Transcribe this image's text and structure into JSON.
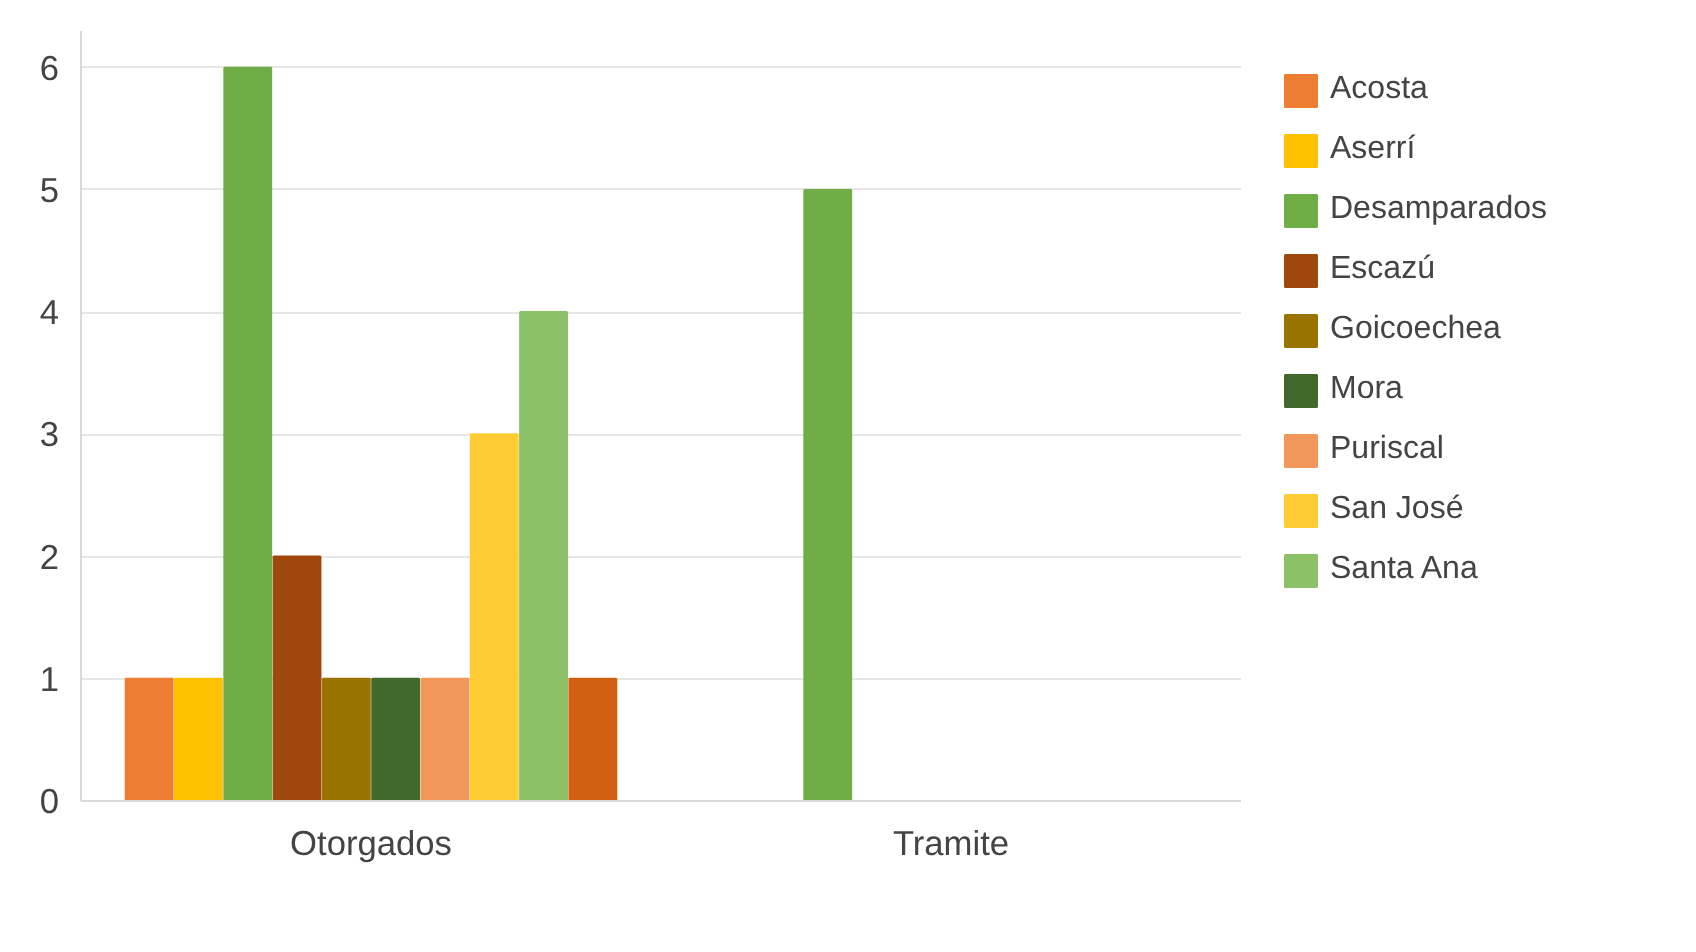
{
  "chart_data": {
    "type": "bar",
    "categories": [
      "Otorgados",
      "Tramite"
    ],
    "series": [
      {
        "name": "Acosta",
        "color": "#ed7d31",
        "values": [
          1,
          0
        ]
      },
      {
        "name": "Aserrí",
        "color": "#ffc000",
        "values": [
          1,
          0
        ]
      },
      {
        "name": "Desamparados",
        "color": "#70ad47",
        "values": [
          6,
          5
        ]
      },
      {
        "name": "Escazú",
        "color": "#9e480e",
        "values": [
          2,
          0
        ]
      },
      {
        "name": "Goicoechea",
        "color": "#997300",
        "values": [
          1,
          0
        ]
      },
      {
        "name": "Mora",
        "color": "#43682b",
        "values": [
          1,
          0
        ]
      },
      {
        "name": "Puriscal",
        "color": "#f1975a",
        "values": [
          1,
          0
        ]
      },
      {
        "name": "San José",
        "color": "#ffcd33",
        "values": [
          3,
          0
        ]
      },
      {
        "name": "Santa Ana",
        "color": "#8cc168",
        "values": [
          4,
          0
        ]
      },
      {
        "color": "#d26012",
        "values": [
          1,
          0
        ]
      }
    ],
    "ylim": [
      0,
      6.3
    ],
    "yticks": [
      0,
      1,
      2,
      3,
      4,
      5,
      6
    ],
    "grid": "y",
    "legend": "right"
  }
}
